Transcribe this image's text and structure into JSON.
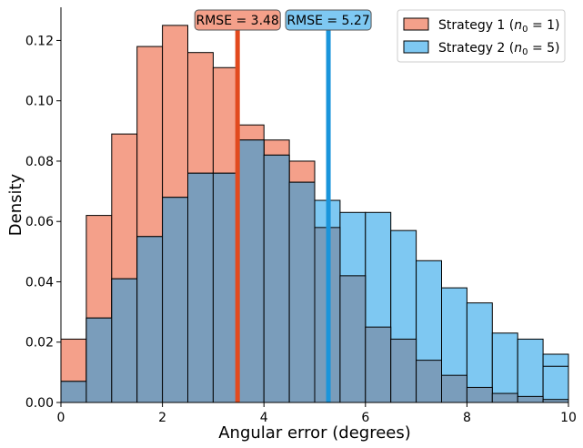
{
  "chart_data": {
    "type": "bar",
    "xlabel": "Angular error (degrees)",
    "ylabel": "Density",
    "xlim": [
      0,
      10
    ],
    "ylim": [
      0,
      0.131
    ],
    "xticks": [
      "0",
      "2",
      "4",
      "6",
      "8",
      "10"
    ],
    "yticks": [
      "0.00",
      "0.02",
      "0.04",
      "0.06",
      "0.08",
      "0.10",
      "0.12"
    ],
    "bin_edges": [
      0,
      0.5,
      1,
      1.5,
      2,
      2.5,
      3,
      3.5,
      4,
      4.5,
      5,
      5.5,
      6,
      6.5,
      7,
      7.5,
      8,
      8.5,
      9,
      9.5,
      10
    ],
    "series": [
      {
        "name_prefix": "Strategy 1 (",
        "name_var": "n",
        "name_sub": "0",
        "name_suffix": " = 1)",
        "color": "#f4a08a",
        "values": [
          0.021,
          0.062,
          0.089,
          0.118,
          0.125,
          0.116,
          0.111,
          0.092,
          0.087,
          0.08,
          0.058,
          0.042,
          0.025,
          0.021,
          0.014,
          0.009,
          0.005,
          0.003,
          0.002,
          0.001
        ]
      },
      {
        "name_prefix": "Strategy 2 (",
        "name_var": "n",
        "name_sub": "0",
        "name_suffix": " = 5)",
        "color": "#7ec8f2",
        "values": [
          0.007,
          0.028,
          0.041,
          0.055,
          0.068,
          0.076,
          0.076,
          0.087,
          0.082,
          0.073,
          0.067,
          0.063,
          0.063,
          0.057,
          0.047,
          0.038,
          0.033,
          0.023,
          0.021,
          0.016
        ]
      }
    ],
    "overlap_color": "#7a9dbb",
    "extra_bar": {
      "x": 9.5,
      "value": 0.012,
      "series": 1
    },
    "rmse_lines": [
      {
        "label": "RMSE = 3.48",
        "x": 3.48,
        "color": "#e24a1e",
        "box_color": "#f4a08a"
      },
      {
        "label": "RMSE = 5.27",
        "x": 5.27,
        "color": "#1a95db",
        "box_color": "#7ec8f2"
      }
    ],
    "legend_position": "top-right",
    "grid": false
  }
}
